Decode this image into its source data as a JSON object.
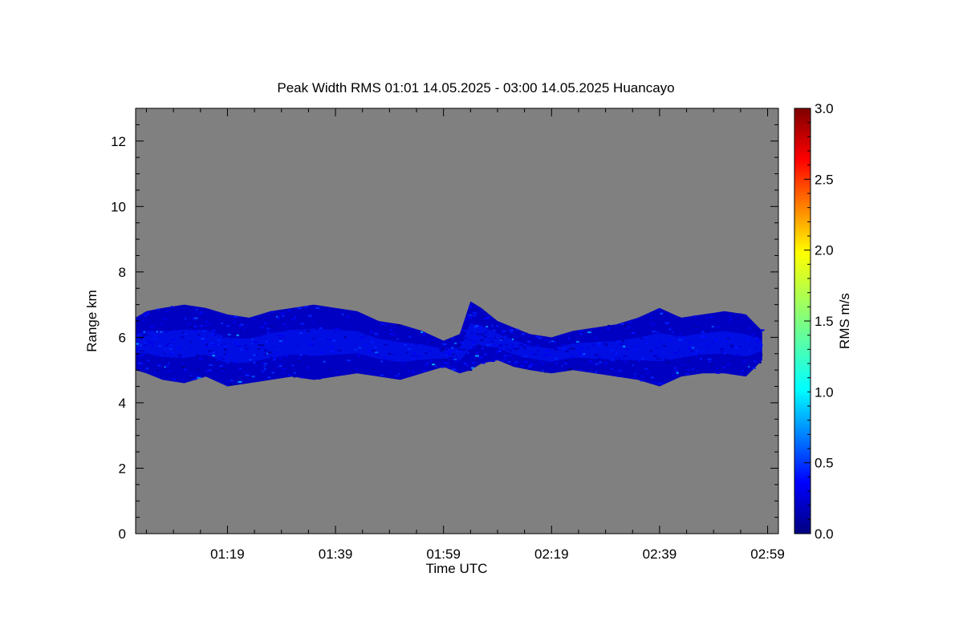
{
  "chart_data": {
    "type": "heatmap",
    "title": "Peak Width RMS   01:01 14.05.2025 - 03:00 14.05.2025 Huancayo",
    "xlabel": "Time UTC",
    "ylabel": "Range km",
    "xlim": [
      "01:01",
      "03:00"
    ],
    "ylim": [
      0,
      13
    ],
    "x_tick_labels": [
      "01:19",
      "01:39",
      "01:59",
      "02:19",
      "02:39",
      "02:59"
    ],
    "x_tick_minutes": [
      78,
      98,
      118,
      138,
      158,
      178
    ],
    "y_ticks": [
      0,
      2,
      4,
      6,
      8,
      10,
      12
    ],
    "background_color": "#808080",
    "colorbar": {
      "label": "RMS m/s",
      "range": [
        0.0,
        3.0
      ],
      "tick_labels": [
        "0.0",
        "0.5",
        "1.0",
        "1.5",
        "2.0",
        "2.5",
        "3.0"
      ],
      "colormap": "jet"
    },
    "echo_layer": {
      "description_values_km": "layer top and bottom range (km) by time (minutes since 00:00)",
      "time_min": [
        61,
        63,
        66,
        70,
        74,
        78,
        82,
        86,
        90,
        94,
        98,
        102,
        106,
        110,
        114,
        118,
        121,
        123,
        125,
        128,
        131,
        134,
        138,
        142,
        146,
        150,
        154,
        158,
        162,
        166,
        170,
        174,
        177
      ],
      "top_km": [
        6.6,
        6.8,
        6.9,
        7.0,
        6.9,
        6.7,
        6.6,
        6.8,
        6.9,
        7.0,
        6.9,
        6.8,
        6.5,
        6.4,
        6.2,
        5.9,
        6.1,
        7.1,
        6.9,
        6.5,
        6.3,
        6.1,
        6.0,
        6.2,
        6.3,
        6.4,
        6.6,
        6.9,
        6.6,
        6.7,
        6.8,
        6.7,
        6.2
      ],
      "bottom_km": [
        5.0,
        4.9,
        4.7,
        4.6,
        4.8,
        4.5,
        4.6,
        4.7,
        4.8,
        4.7,
        4.8,
        4.9,
        4.8,
        4.7,
        4.9,
        5.1,
        4.9,
        5.0,
        5.2,
        5.3,
        5.1,
        5.0,
        4.9,
        5.0,
        4.9,
        4.8,
        4.7,
        4.5,
        4.8,
        4.9,
        4.9,
        4.8,
        5.3
      ],
      "core_value_ms": 0.2,
      "max_value_ms": 0.9
    }
  }
}
